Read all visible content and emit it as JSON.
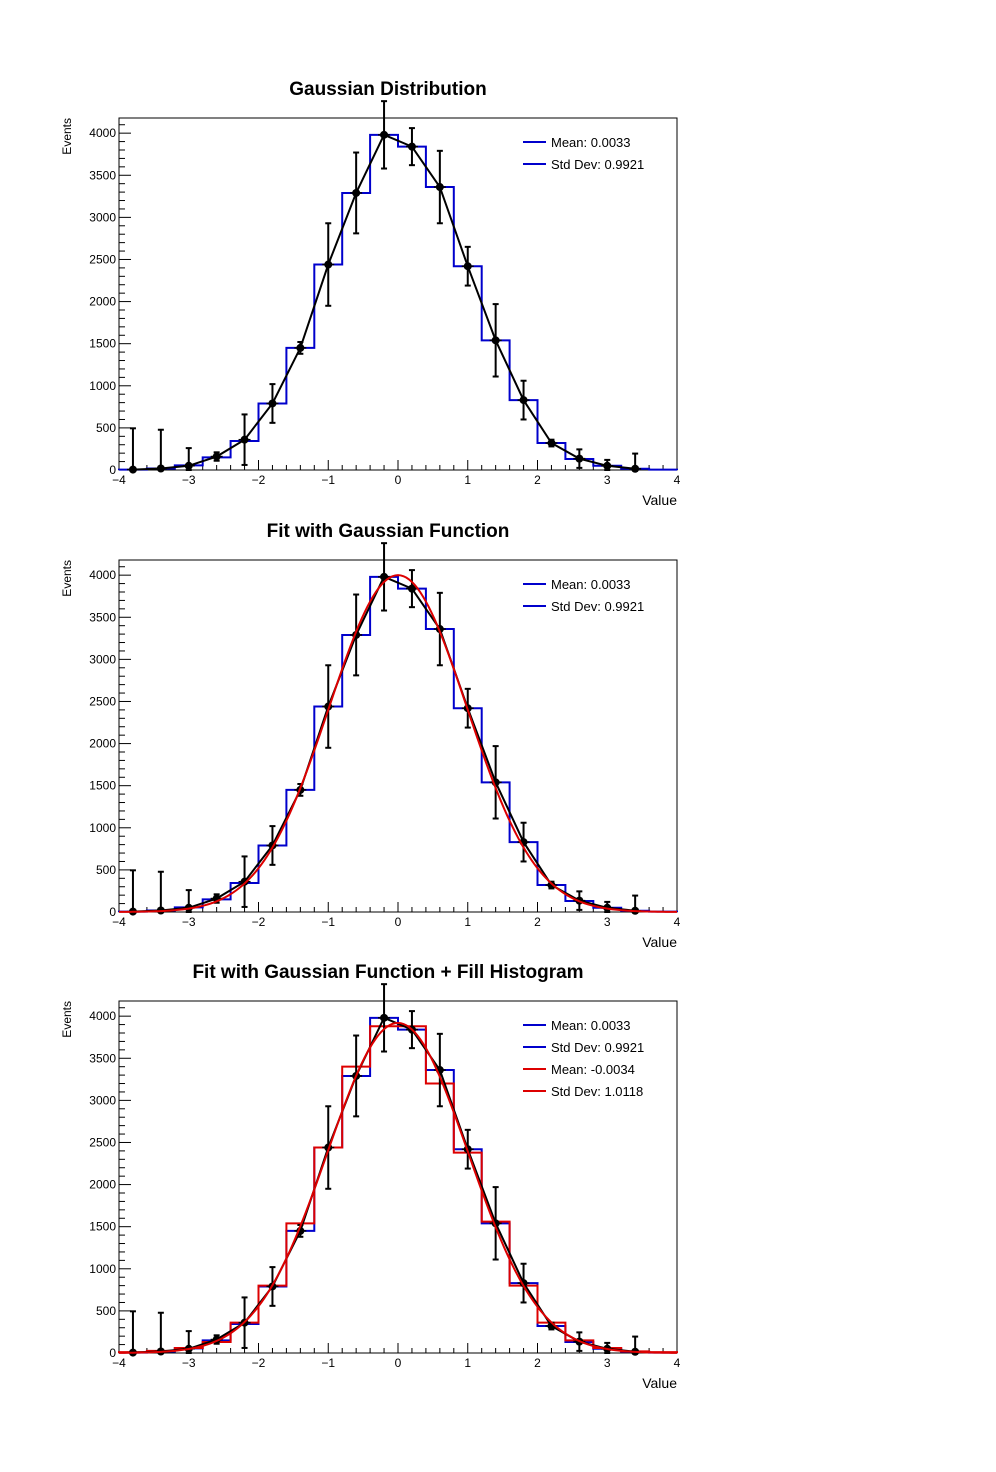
{
  "colors": {
    "blue": "#0000cc",
    "red": "#dd0000",
    "black": "#000000"
  },
  "chart_data": [
    {
      "type": "line",
      "title": "Gaussian Distribution",
      "xlabel": "Value",
      "ylabel": "Events",
      "xlim": [
        -4,
        4
      ],
      "ylim": [
        0,
        4180
      ],
      "xticks": [
        "-4",
        "-3",
        "-2",
        "-1",
        "0",
        "1",
        "2",
        "3",
        "4"
      ],
      "yticks": [
        "0",
        "500",
        "1000",
        "1500",
        "2000",
        "2500",
        "3000",
        "3500",
        "4000"
      ],
      "legend": [
        "Mean: 0.0033",
        "Std Dev: 0.9921"
      ],
      "legend_position": "top-right",
      "series": [
        {
          "kind": "histogram",
          "color": "#0000cc",
          "bin_edges": [
            -4,
            -3.6,
            -3.2,
            -2.8,
            -2.4,
            -2.0,
            -1.6,
            -1.2,
            -0.8,
            -0.4,
            0,
            0.4,
            0.8,
            1.2,
            1.6,
            2.0,
            2.4,
            2.8,
            3.2,
            3.6,
            4
          ],
          "values": [
            5,
            18,
            55,
            150,
            345,
            790,
            1450,
            2440,
            3290,
            3980,
            3840,
            3360,
            2420,
            1540,
            830,
            320,
            130,
            50,
            15,
            5
          ]
        },
        {
          "kind": "points",
          "color": "#000000",
          "x": [
            -3.8,
            -3.4,
            -3.0,
            -2.6,
            -2.2,
            -1.8,
            -1.4,
            -1.0,
            -0.6,
            -0.2,
            0.2,
            0.6,
            1.0,
            1.4,
            1.8,
            2.2,
            2.6,
            3.0,
            3.4
          ],
          "y": [
            5,
            18,
            50,
            160,
            360,
            790,
            1450,
            2440,
            3290,
            3980,
            3840,
            3360,
            2420,
            1540,
            830,
            320,
            135,
            50,
            15
          ],
          "err": [
            490,
            460,
            210,
            50,
            300,
            230,
            70,
            490,
            480,
            400,
            220,
            430,
            230,
            430,
            230,
            40,
            110,
            70,
            180
          ]
        }
      ]
    },
    {
      "type": "line",
      "title": "Fit with Gaussian Function",
      "xlabel": "Value",
      "ylabel": "Events",
      "xlim": [
        -4,
        4
      ],
      "ylim": [
        0,
        4180
      ],
      "xticks": [
        "-4",
        "-3",
        "-2",
        "-1",
        "0",
        "1",
        "2",
        "3",
        "4"
      ],
      "yticks": [
        "0",
        "500",
        "1000",
        "1500",
        "2000",
        "2500",
        "3000",
        "3500",
        "4000"
      ],
      "legend": [
        "Mean: 0.0033",
        "Std Dev: 0.9921"
      ],
      "legend_position": "top-right",
      "series": [
        {
          "kind": "histogram",
          "color": "#0000cc",
          "bin_edges": [
            -4,
            -3.6,
            -3.2,
            -2.8,
            -2.4,
            -2.0,
            -1.6,
            -1.2,
            -0.8,
            -0.4,
            0,
            0.4,
            0.8,
            1.2,
            1.6,
            2.0,
            2.4,
            2.8,
            3.2,
            3.6,
            4
          ],
          "values": [
            5,
            18,
            55,
            150,
            345,
            790,
            1450,
            2440,
            3290,
            3980,
            3840,
            3360,
            2420,
            1540,
            830,
            320,
            130,
            50,
            15,
            5
          ]
        },
        {
          "kind": "points",
          "color": "#000000",
          "x": [
            -3.8,
            -3.4,
            -3.0,
            -2.6,
            -2.2,
            -1.8,
            -1.4,
            -1.0,
            -0.6,
            -0.2,
            0.2,
            0.6,
            1.0,
            1.4,
            1.8,
            2.2,
            2.6,
            3.0,
            3.4
          ],
          "y": [
            5,
            18,
            50,
            160,
            360,
            790,
            1450,
            2440,
            3290,
            3980,
            3840,
            3360,
            2420,
            1540,
            830,
            320,
            135,
            50,
            15
          ],
          "err": [
            490,
            460,
            210,
            50,
            300,
            230,
            70,
            490,
            480,
            400,
            220,
            430,
            230,
            430,
            230,
            40,
            110,
            70,
            180
          ]
        },
        {
          "kind": "gauss",
          "color": "#dd0000",
          "amplitude": 4000,
          "mean": 0.0,
          "sigma": 0.99
        }
      ]
    },
    {
      "type": "line",
      "title": "Fit with Gaussian Function + Fill Histogram",
      "xlabel": "Value",
      "ylabel": "Events",
      "xlim": [
        -4,
        4
      ],
      "ylim": [
        0,
        4180
      ],
      "xticks": [
        "-4",
        "-3",
        "-2",
        "-1",
        "0",
        "1",
        "2",
        "3",
        "4"
      ],
      "yticks": [
        "0",
        "500",
        "1000",
        "1500",
        "2000",
        "2500",
        "3000",
        "3500",
        "4000"
      ],
      "legend": [
        "Mean: 0.0033",
        "Std Dev: 0.9921",
        "Mean: -0.0034",
        "Std Dev: 1.0118"
      ],
      "legend_colors": [
        "#0000cc",
        "#0000cc",
        "#dd0000",
        "#dd0000"
      ],
      "legend_position": "top-right",
      "series": [
        {
          "kind": "histogram",
          "color": "#0000cc",
          "bin_edges": [
            -4,
            -3.6,
            -3.2,
            -2.8,
            -2.4,
            -2.0,
            -1.6,
            -1.2,
            -0.8,
            -0.4,
            0,
            0.4,
            0.8,
            1.2,
            1.6,
            2.0,
            2.4,
            2.8,
            3.2,
            3.6,
            4
          ],
          "values": [
            5,
            18,
            55,
            150,
            345,
            790,
            1450,
            2440,
            3290,
            3980,
            3840,
            3360,
            2420,
            1540,
            830,
            320,
            130,
            50,
            15,
            5
          ]
        },
        {
          "kind": "histogram",
          "color": "#dd0000",
          "bin_edges": [
            -4,
            -3.6,
            -3.2,
            -2.8,
            -2.4,
            -2.0,
            -1.6,
            -1.2,
            -0.8,
            -0.4,
            0,
            0.4,
            0.8,
            1.2,
            1.6,
            2.0,
            2.4,
            2.8,
            3.2,
            3.6,
            4
          ],
          "values": [
            10,
            25,
            60,
            130,
            360,
            800,
            1540,
            2440,
            3400,
            3880,
            3880,
            3200,
            2380,
            1560,
            800,
            360,
            150,
            60,
            20,
            10
          ]
        },
        {
          "kind": "points",
          "color": "#000000",
          "x": [
            -3.8,
            -3.4,
            -3.0,
            -2.6,
            -2.2,
            -1.8,
            -1.4,
            -1.0,
            -0.6,
            -0.2,
            0.2,
            0.6,
            1.0,
            1.4,
            1.8,
            2.2,
            2.6,
            3.0,
            3.4
          ],
          "y": [
            5,
            18,
            50,
            160,
            360,
            790,
            1450,
            2440,
            3290,
            3980,
            3840,
            3360,
            2420,
            1540,
            830,
            320,
            135,
            50,
            15
          ],
          "err": [
            490,
            460,
            210,
            50,
            300,
            230,
            70,
            490,
            480,
            400,
            220,
            430,
            230,
            430,
            230,
            40,
            110,
            70,
            180
          ]
        },
        {
          "kind": "gauss",
          "color": "#dd0000",
          "amplitude": 3920,
          "mean": -0.003,
          "sigma": 1.01
        }
      ]
    }
  ]
}
